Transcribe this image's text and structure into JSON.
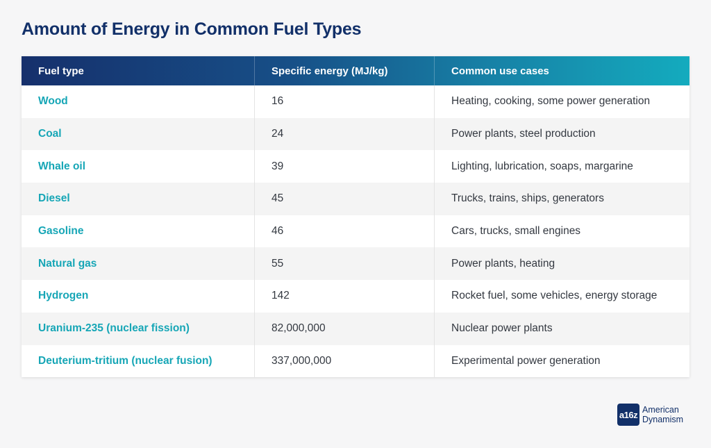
{
  "title": "Amount of Energy in Common Fuel Types",
  "table": {
    "headers": [
      "Fuel type",
      "Specific energy (MJ/kg)",
      "Common use cases"
    ],
    "rows": [
      [
        "Wood",
        "16",
        "Heating, cooking, some power generation"
      ],
      [
        "Coal",
        "24",
        "Power plants, steel production"
      ],
      [
        "Whale oil",
        "39",
        "Lighting, lubrication, soaps, margarine"
      ],
      [
        "Diesel",
        "45",
        "Trucks, trains, ships, generators"
      ],
      [
        "Gasoline",
        "46",
        "Cars, trucks, small engines"
      ],
      [
        "Natural gas",
        "55",
        "Power plants, heating"
      ],
      [
        "Hydrogen",
        "142",
        "Rocket fuel, some vehicles, energy storage"
      ],
      [
        "Uranium-235 (nuclear fission)",
        "82,000,000",
        "Nuclear power plants"
      ],
      [
        "Deuterium-tritium (nuclear fusion)",
        "337,000,000",
        "Experimental power generation"
      ]
    ]
  },
  "logo": {
    "mark": "a16z",
    "line1": "American",
    "line2": "Dynamism"
  },
  "colors": {
    "title": "#123069",
    "fuel_name": "#16a6b6",
    "header_gradient_start": "#16306c",
    "header_gradient_end": "#14abbe"
  }
}
